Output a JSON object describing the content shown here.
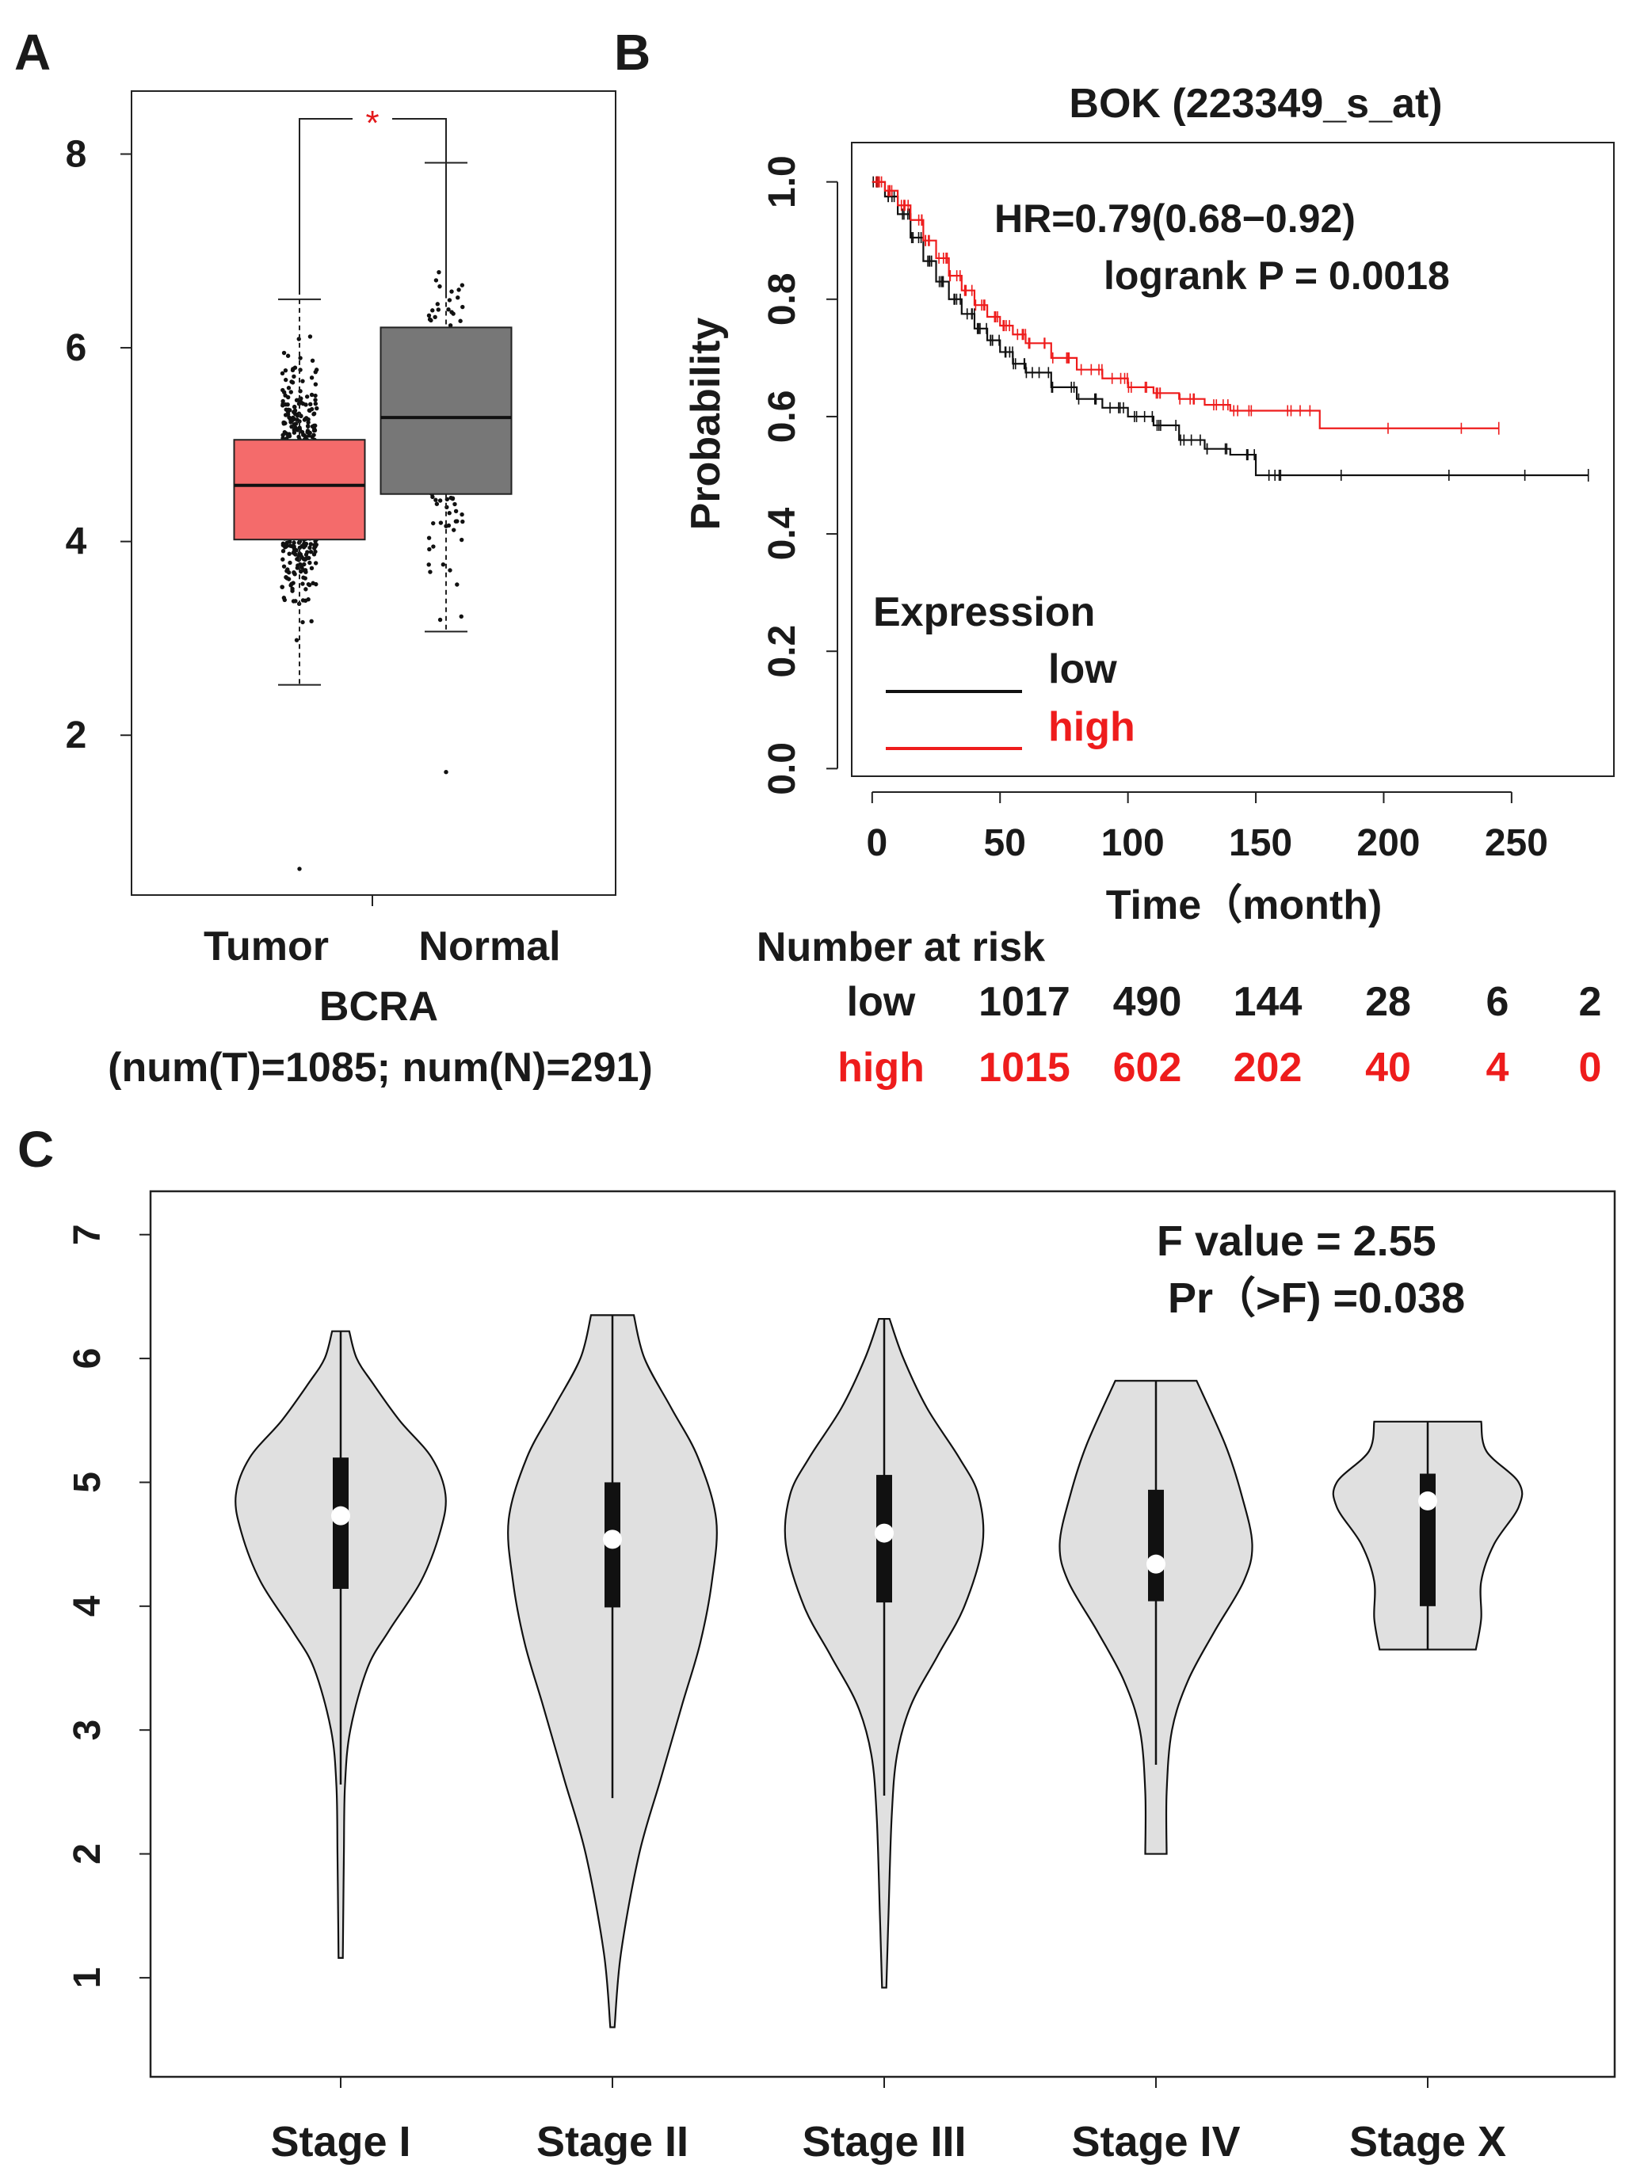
{
  "panels": {
    "a": {
      "letter": "A"
    },
    "b": {
      "letter": "B"
    },
    "c": {
      "letter": "C"
    }
  },
  "colors": {
    "tumor_box": "#f46b6b",
    "normal_box": "#777777",
    "high_curve": "#ee1c1c",
    "low_curve": "#111111",
    "violin_fill": "#e0e0e0",
    "sig_star": "#e31a1c"
  },
  "chart_data": [
    {
      "id": "A",
      "type": "box",
      "categories": [
        "Tumor",
        "Normal"
      ],
      "boxes": [
        {
          "name": "Tumor",
          "q1": 4.02,
          "median": 4.58,
          "q3": 5.05,
          "whisker_low": 2.52,
          "whisker_high": 6.5,
          "min_point": 0.62,
          "max_point": 6.5,
          "n": 1085
        },
        {
          "name": "Normal",
          "q1": 4.49,
          "median": 5.28,
          "q3": 6.21,
          "whisker_low": 3.07,
          "whisker_high": 7.91,
          "min_point": 1.62,
          "max_point": 7.91,
          "n": 291
        }
      ],
      "significance": "*",
      "xlabel": "BCRA",
      "subtitle": "(num(T)=1085; num(N)=291)",
      "yticks": [
        "2",
        "4",
        "6",
        "8"
      ],
      "ylim": [
        0.35,
        8.65
      ]
    },
    {
      "id": "B",
      "type": "line",
      "title": "BOK (223349_s_at)",
      "xlabel": "Time（month)",
      "ylabel": "Probability",
      "xticks": [
        "0",
        "50",
        "100",
        "150",
        "200",
        "250"
      ],
      "yticks": [
        "0.0",
        "0.2",
        "0.4",
        "0.6",
        "0.8",
        "1.0"
      ],
      "xlim": [
        -8,
        290
      ],
      "ylim": [
        -0.04,
        1.04
      ],
      "hr_text": "HR=0.79(0.68−0.92)",
      "p_text": "logrank P = 0.0018",
      "legend_title": "Expression",
      "series": [
        {
          "name": "low",
          "x": [
            0,
            5,
            10,
            15,
            20,
            25,
            30,
            35,
            40,
            45,
            50,
            55,
            60,
            70,
            80,
            90,
            100,
            110,
            120,
            130,
            140,
            150,
            160,
            200,
            240,
            280
          ],
          "y": [
            1.0,
            0.975,
            0.945,
            0.905,
            0.865,
            0.83,
            0.8,
            0.775,
            0.75,
            0.73,
            0.71,
            0.69,
            0.675,
            0.65,
            0.63,
            0.615,
            0.6,
            0.585,
            0.56,
            0.545,
            0.535,
            0.5,
            0.5,
            0.5,
            0.5,
            0.5
          ]
        },
        {
          "name": "high",
          "x": [
            0,
            5,
            10,
            15,
            20,
            25,
            30,
            35,
            40,
            45,
            50,
            55,
            60,
            70,
            80,
            90,
            100,
            110,
            120,
            130,
            140,
            150,
            175,
            210,
            245
          ],
          "y": [
            1.0,
            0.985,
            0.96,
            0.935,
            0.9,
            0.87,
            0.84,
            0.815,
            0.79,
            0.77,
            0.755,
            0.74,
            0.725,
            0.7,
            0.68,
            0.665,
            0.65,
            0.64,
            0.63,
            0.62,
            0.61,
            0.61,
            0.58,
            0.58,
            0.58
          ]
        }
      ],
      "risk_table": {
        "title": "Number at risk",
        "rows": [
          {
            "label": "low",
            "values": [
              "1017",
              "490",
              "144",
              "28",
              "6",
              "2"
            ]
          },
          {
            "label": "high",
            "values": [
              "1015",
              "602",
              "202",
              "40",
              "4",
              "0"
            ]
          }
        ]
      }
    },
    {
      "id": "C",
      "type": "violin",
      "categories": [
        "Stage I",
        "Stage II",
        "Stage III",
        "Stage IV",
        "Stage X"
      ],
      "violins": [
        {
          "name": "Stage I",
          "min": 1.16,
          "max": 6.22,
          "q1": 4.14,
          "median": 4.73,
          "q3": 5.2,
          "whisker_low": 2.56,
          "whisker_high": 6.22,
          "profile": [
            [
              1.16,
              0.02
            ],
            [
              1.6,
              0.025
            ],
            [
              2.0,
              0.03
            ],
            [
              2.55,
              0.04
            ],
            [
              3.0,
              0.09
            ],
            [
              3.5,
              0.25
            ],
            [
              3.8,
              0.45
            ],
            [
              4.2,
              0.75
            ],
            [
              4.6,
              0.93
            ],
            [
              4.9,
              0.98
            ],
            [
              5.2,
              0.85
            ],
            [
              5.5,
              0.55
            ],
            [
              5.8,
              0.3
            ],
            [
              6.0,
              0.15
            ],
            [
              6.22,
              0.08
            ]
          ]
        },
        {
          "name": "Stage II",
          "min": 0.6,
          "max": 6.35,
          "q1": 3.99,
          "median": 4.54,
          "q3": 5.0,
          "whisker_low": 2.45,
          "whisker_high": 6.35,
          "profile": [
            [
              0.6,
              0.02
            ],
            [
              1.2,
              0.08
            ],
            [
              2.0,
              0.25
            ],
            [
              2.6,
              0.45
            ],
            [
              3.2,
              0.65
            ],
            [
              3.7,
              0.82
            ],
            [
              4.2,
              0.93
            ],
            [
              4.7,
              0.97
            ],
            [
              5.2,
              0.8
            ],
            [
              5.6,
              0.55
            ],
            [
              6.0,
              0.3
            ],
            [
              6.35,
              0.2
            ]
          ]
        },
        {
          "name": "Stage III",
          "min": 0.92,
          "max": 6.32,
          "q1": 4.03,
          "median": 4.59,
          "q3": 5.06,
          "whisker_low": 2.47,
          "whisker_high": 6.32,
          "profile": [
            [
              0.92,
              0.02
            ],
            [
              1.5,
              0.04
            ],
            [
              2.3,
              0.07
            ],
            [
              2.8,
              0.12
            ],
            [
              3.2,
              0.25
            ],
            [
              3.6,
              0.5
            ],
            [
              4.0,
              0.75
            ],
            [
              4.5,
              0.92
            ],
            [
              4.9,
              0.88
            ],
            [
              5.2,
              0.7
            ],
            [
              5.6,
              0.4
            ],
            [
              6.0,
              0.18
            ],
            [
              6.32,
              0.05
            ]
          ]
        },
        {
          "name": "Stage IV",
          "min": 2.0,
          "max": 5.82,
          "q1": 4.04,
          "median": 4.34,
          "q3": 4.94,
          "whisker_low": 2.72,
          "whisker_high": 5.82,
          "profile": [
            [
              2.0,
              0.1
            ],
            [
              2.5,
              0.1
            ],
            [
              3.0,
              0.15
            ],
            [
              3.4,
              0.3
            ],
            [
              3.8,
              0.55
            ],
            [
              4.2,
              0.82
            ],
            [
              4.5,
              0.9
            ],
            [
              4.9,
              0.8
            ],
            [
              5.3,
              0.65
            ],
            [
              5.82,
              0.38
            ]
          ]
        },
        {
          "name": "Stage X",
          "min": 3.65,
          "max": 5.49,
          "q1": 4.0,
          "median": 4.85,
          "q3": 5.07,
          "whisker_low": 3.65,
          "whisker_high": 5.49,
          "profile": [
            [
              3.65,
              0.45
            ],
            [
              3.9,
              0.5
            ],
            [
              4.2,
              0.5
            ],
            [
              4.5,
              0.62
            ],
            [
              4.8,
              0.85
            ],
            [
              5.0,
              0.85
            ],
            [
              5.25,
              0.55
            ],
            [
              5.49,
              0.5
            ]
          ]
        }
      ],
      "yticks": [
        "1",
        "2",
        "3",
        "4",
        "5",
        "6",
        "7"
      ],
      "ylim": [
        0.2,
        7.35
      ],
      "f_text": "F value = 2.55",
      "pr_text": "Pr（>F) =0.038"
    }
  ]
}
